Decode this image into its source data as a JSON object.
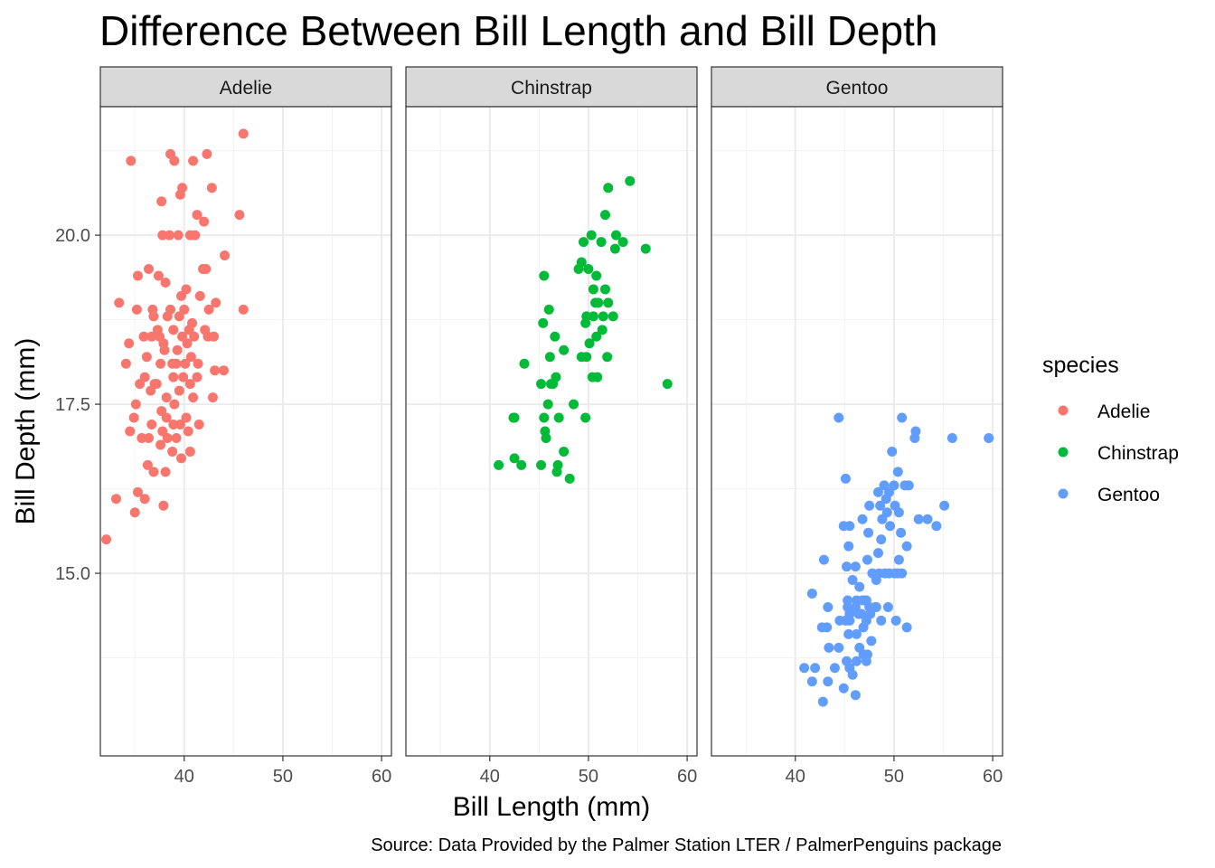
{
  "chart_data": {
    "type": "scatter",
    "title": "Difference Between Bill Length and Bill Depth",
    "xlabel": "Bill Length (mm)",
    "ylabel": "Bill Depth (mm)",
    "caption": "Source: Data Provided by the Palmer Station LTER / PalmerPenguins package",
    "xlim": [
      31.5,
      61
    ],
    "ylim": [
      12.3,
      21.9
    ],
    "x_ticks": [
      40,
      50,
      60
    ],
    "y_ticks": [
      15.0,
      17.5,
      20.0
    ],
    "x_tick_labels": [
      "40",
      "50",
      "60"
    ],
    "y_tick_labels": [
      "15.0",
      "17.5",
      "20.0"
    ],
    "legend": {
      "title": "species",
      "position": "right",
      "entries": [
        "Adelie",
        "Chinstrap",
        "Gentoo"
      ]
    },
    "grid": true,
    "facets": [
      "Adelie",
      "Chinstrap",
      "Gentoo"
    ],
    "series": [
      {
        "name": "Adelie",
        "color": "#F8766D",
        "points": [
          [
            46.0,
            21.5
          ],
          [
            34.6,
            21.1
          ],
          [
            38.6,
            21.2
          ],
          [
            42.3,
            21.2
          ],
          [
            39.0,
            21.1
          ],
          [
            40.9,
            21.1
          ],
          [
            42.8,
            20.7
          ],
          [
            39.8,
            20.7
          ],
          [
            39.6,
            20.6
          ],
          [
            37.7,
            20.5
          ],
          [
            45.6,
            20.3
          ],
          [
            41.3,
            20.3
          ],
          [
            42.0,
            20.2
          ],
          [
            40.6,
            20.0
          ],
          [
            37.8,
            20.0
          ],
          [
            38.5,
            20.0
          ],
          [
            39.4,
            20.0
          ],
          [
            41.1,
            20.0
          ],
          [
            44.1,
            19.7
          ],
          [
            36.4,
            19.5
          ],
          [
            41.9,
            19.5
          ],
          [
            42.2,
            19.5
          ],
          [
            35.3,
            19.4
          ],
          [
            37.4,
            19.4
          ],
          [
            38.1,
            19.3
          ],
          [
            40.2,
            19.2
          ],
          [
            41.6,
            19.1
          ],
          [
            39.7,
            19.1
          ],
          [
            43.2,
            19.0
          ],
          [
            33.4,
            19.0
          ],
          [
            36.8,
            18.9
          ],
          [
            35.2,
            18.9
          ],
          [
            38.6,
            18.9
          ],
          [
            42.5,
            18.9
          ],
          [
            46.0,
            18.9
          ],
          [
            40.0,
            18.9
          ],
          [
            38.3,
            18.8
          ],
          [
            36.9,
            18.8
          ],
          [
            39.5,
            18.8
          ],
          [
            40.8,
            18.7
          ],
          [
            37.3,
            18.6
          ],
          [
            40.5,
            18.6
          ],
          [
            38.9,
            18.6
          ],
          [
            42.1,
            18.6
          ],
          [
            36.7,
            18.5
          ],
          [
            37.5,
            18.5
          ],
          [
            39.8,
            18.5
          ],
          [
            41.0,
            18.5
          ],
          [
            43.0,
            18.5
          ],
          [
            35.9,
            18.5
          ],
          [
            42.4,
            18.5
          ],
          [
            40.3,
            18.4
          ],
          [
            34.4,
            18.4
          ],
          [
            37.9,
            18.4
          ],
          [
            38.0,
            18.3
          ],
          [
            39.3,
            18.3
          ],
          [
            36.2,
            18.2
          ],
          [
            40.7,
            18.2
          ],
          [
            38.8,
            18.1
          ],
          [
            37.6,
            18.1
          ],
          [
            34.1,
            18.1
          ],
          [
            39.2,
            18.1
          ],
          [
            40.1,
            18.1
          ],
          [
            41.4,
            18.1
          ],
          [
            43.1,
            18.0
          ],
          [
            44.0,
            18.0
          ],
          [
            36.0,
            17.9
          ],
          [
            38.9,
            17.9
          ],
          [
            39.9,
            17.9
          ],
          [
            41.3,
            17.9
          ],
          [
            35.5,
            17.8
          ],
          [
            37.2,
            17.8
          ],
          [
            40.6,
            17.8
          ],
          [
            37.0,
            17.8
          ],
          [
            36.6,
            17.7
          ],
          [
            39.5,
            17.7
          ],
          [
            38.2,
            17.6
          ],
          [
            40.9,
            17.6
          ],
          [
            42.9,
            17.6
          ],
          [
            35.1,
            17.5
          ],
          [
            39.0,
            17.5
          ],
          [
            37.7,
            17.4
          ],
          [
            34.9,
            17.3
          ],
          [
            38.2,
            17.3
          ],
          [
            40.2,
            17.3
          ],
          [
            36.7,
            17.2
          ],
          [
            38.9,
            17.2
          ],
          [
            41.5,
            17.2
          ],
          [
            39.6,
            17.2
          ],
          [
            34.5,
            17.1
          ],
          [
            37.8,
            17.1
          ],
          [
            40.4,
            17.1
          ],
          [
            36.4,
            17.0
          ],
          [
            35.7,
            17.0
          ],
          [
            39.2,
            17.0
          ],
          [
            38.3,
            17.0
          ],
          [
            37.6,
            16.9
          ],
          [
            40.6,
            16.8
          ],
          [
            38.8,
            16.8
          ],
          [
            36.3,
            16.6
          ],
          [
            39.7,
            16.7
          ],
          [
            36.9,
            16.5
          ],
          [
            38.1,
            16.5
          ],
          [
            35.3,
            16.2
          ],
          [
            33.1,
            16.1
          ],
          [
            36.0,
            16.1
          ],
          [
            37.9,
            16.0
          ],
          [
            35.0,
            15.9
          ],
          [
            32.1,
            15.5
          ]
        ]
      },
      {
        "name": "Chinstrap",
        "color": "#00BA38",
        "points": [
          [
            54.2,
            20.8
          ],
          [
            52.0,
            20.7
          ],
          [
            51.7,
            20.3
          ],
          [
            50.3,
            20.0
          ],
          [
            52.8,
            20.0
          ],
          [
            49.5,
            19.9
          ],
          [
            51.3,
            19.9
          ],
          [
            53.5,
            19.9
          ],
          [
            55.8,
            19.8
          ],
          [
            52.7,
            19.8
          ],
          [
            49.3,
            19.6
          ],
          [
            49.0,
            19.5
          ],
          [
            50.0,
            19.5
          ],
          [
            50.8,
            19.4
          ],
          [
            45.5,
            19.4
          ],
          [
            50.5,
            19.2
          ],
          [
            51.7,
            19.2
          ],
          [
            50.7,
            19.0
          ],
          [
            51.0,
            19.0
          ],
          [
            52.0,
            19.0
          ],
          [
            46.0,
            18.9
          ],
          [
            49.8,
            18.8
          ],
          [
            50.5,
            18.8
          ],
          [
            51.5,
            18.8
          ],
          [
            52.5,
            18.8
          ],
          [
            45.4,
            18.7
          ],
          [
            49.7,
            18.7
          ],
          [
            51.4,
            18.6
          ],
          [
            46.6,
            18.5
          ],
          [
            50.8,
            18.5
          ],
          [
            50.1,
            18.4
          ],
          [
            47.5,
            18.3
          ],
          [
            43.5,
            18.1
          ],
          [
            46.1,
            18.2
          ],
          [
            49.3,
            18.2
          ],
          [
            49.8,
            18.2
          ],
          [
            51.9,
            18.2
          ],
          [
            50.9,
            17.9
          ],
          [
            50.4,
            17.9
          ],
          [
            46.7,
            17.9
          ],
          [
            45.2,
            17.8
          ],
          [
            46.4,
            17.8
          ],
          [
            46.2,
            17.8
          ],
          [
            58.0,
            17.8
          ],
          [
            48.5,
            17.5
          ],
          [
            45.9,
            17.5
          ],
          [
            42.4,
            17.3
          ],
          [
            42.5,
            17.3
          ],
          [
            45.5,
            17.3
          ],
          [
            47.0,
            17.3
          ],
          [
            49.7,
            17.3
          ],
          [
            45.7,
            17.0
          ],
          [
            45.6,
            17.1
          ],
          [
            46.9,
            16.6
          ],
          [
            47.5,
            16.8
          ],
          [
            42.5,
            16.7
          ],
          [
            40.9,
            16.6
          ],
          [
            43.2,
            16.6
          ],
          [
            45.2,
            16.6
          ],
          [
            46.8,
            16.5
          ],
          [
            48.1,
            16.4
          ]
        ]
      },
      {
        "name": "Gentoo",
        "color": "#619CFF",
        "points": [
          [
            44.4,
            17.3
          ],
          [
            50.8,
            17.3
          ],
          [
            52.2,
            17.1
          ],
          [
            55.9,
            17.0
          ],
          [
            59.6,
            17.0
          ],
          [
            52.1,
            17.0
          ],
          [
            49.8,
            16.8
          ],
          [
            50.4,
            16.5
          ],
          [
            45.1,
            16.4
          ],
          [
            49.0,
            16.3
          ],
          [
            50.0,
            16.3
          ],
          [
            51.1,
            16.3
          ],
          [
            51.5,
            16.3
          ],
          [
            48.4,
            16.2
          ],
          [
            49.5,
            16.2
          ],
          [
            49.2,
            16.1
          ],
          [
            48.6,
            16.0
          ],
          [
            50.1,
            16.0
          ],
          [
            55.1,
            16.0
          ],
          [
            47.5,
            16.0
          ],
          [
            49.3,
            15.9
          ],
          [
            52.5,
            15.8
          ],
          [
            50.5,
            15.9
          ],
          [
            48.8,
            15.8
          ],
          [
            46.8,
            15.8
          ],
          [
            53.4,
            15.8
          ],
          [
            54.3,
            15.7
          ],
          [
            44.9,
            15.7
          ],
          [
            45.5,
            15.7
          ],
          [
            49.6,
            15.7
          ],
          [
            50.7,
            15.6
          ],
          [
            47.4,
            15.6
          ],
          [
            48.7,
            15.5
          ],
          [
            51.3,
            15.4
          ],
          [
            45.4,
            15.4
          ],
          [
            48.4,
            15.3
          ],
          [
            46.1,
            15.1
          ],
          [
            47.3,
            15.2
          ],
          [
            45.2,
            15.1
          ],
          [
            50.5,
            15.2
          ],
          [
            50.1,
            15.0
          ],
          [
            42.9,
            15.2
          ],
          [
            50.4,
            15.0
          ],
          [
            46.5,
            14.8
          ],
          [
            45.8,
            14.9
          ],
          [
            47.8,
            15.0
          ],
          [
            48.5,
            15.0
          ],
          [
            49.1,
            15.0
          ],
          [
            48.2,
            14.9
          ],
          [
            49.5,
            15.0
          ],
          [
            50.8,
            15.0
          ],
          [
            46.2,
            14.6
          ],
          [
            46.1,
            14.5
          ],
          [
            47.2,
            14.6
          ],
          [
            47.0,
            14.6
          ],
          [
            46.8,
            14.6
          ],
          [
            45.3,
            14.6
          ],
          [
            48.2,
            14.5
          ],
          [
            47.5,
            14.5
          ],
          [
            46.7,
            14.4
          ],
          [
            45.3,
            14.5
          ],
          [
            43.3,
            14.5
          ],
          [
            46.4,
            14.4
          ],
          [
            47.6,
            14.4
          ],
          [
            48.1,
            14.5
          ],
          [
            41.7,
            14.7
          ],
          [
            49.4,
            14.5
          ],
          [
            45.5,
            14.4
          ],
          [
            46.9,
            14.2
          ],
          [
            45.5,
            14.3
          ],
          [
            45.1,
            14.3
          ],
          [
            47.2,
            14.3
          ],
          [
            48.7,
            14.3
          ],
          [
            44.5,
            14.3
          ],
          [
            50.2,
            14.3
          ],
          [
            51.3,
            14.2
          ],
          [
            46.2,
            14.1
          ],
          [
            42.7,
            14.2
          ],
          [
            43.2,
            14.2
          ],
          [
            45.4,
            14.1
          ],
          [
            46.5,
            13.9
          ],
          [
            47.7,
            14.0
          ],
          [
            47.3,
            13.8
          ],
          [
            43.4,
            13.9
          ],
          [
            44.4,
            13.9
          ],
          [
            45.2,
            13.7
          ],
          [
            46.2,
            13.7
          ],
          [
            45.5,
            13.6
          ],
          [
            47.2,
            13.7
          ],
          [
            46.9,
            13.8
          ],
          [
            44.0,
            13.6
          ],
          [
            42.0,
            13.6
          ],
          [
            40.9,
            13.6
          ],
          [
            43.3,
            13.4
          ],
          [
            45.8,
            13.5
          ],
          [
            41.7,
            13.4
          ],
          [
            44.9,
            13.3
          ],
          [
            46.1,
            13.2
          ],
          [
            42.8,
            13.1
          ]
        ]
      }
    ]
  }
}
